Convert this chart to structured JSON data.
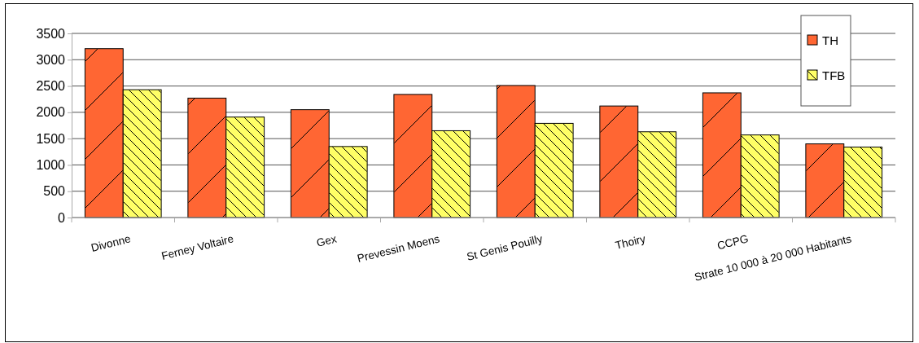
{
  "chart_data": {
    "type": "bar",
    "categories": [
      "Divonne",
      "Ferney Voltaire",
      "Gex",
      "Prevessin Moens",
      "St Genis Pouilly",
      "Thoiry",
      "CCPG",
      "Strate 10 000 à 20 000 Habitants"
    ],
    "series": [
      {
        "name": "TH",
        "color": "#ff6633",
        "values": [
          3210,
          2270,
          2050,
          2340,
          2510,
          2120,
          2370,
          1400
        ]
      },
      {
        "name": "TFB",
        "color": "#ffff66",
        "values": [
          2430,
          1910,
          1350,
          1650,
          1790,
          1630,
          1570,
          1340
        ]
      }
    ],
    "ylim": [
      0,
      3500
    ],
    "yticks": [
      0,
      500,
      1000,
      1500,
      2000,
      2500,
      3000,
      3500
    ],
    "grid": "y",
    "legend": "top right"
  }
}
